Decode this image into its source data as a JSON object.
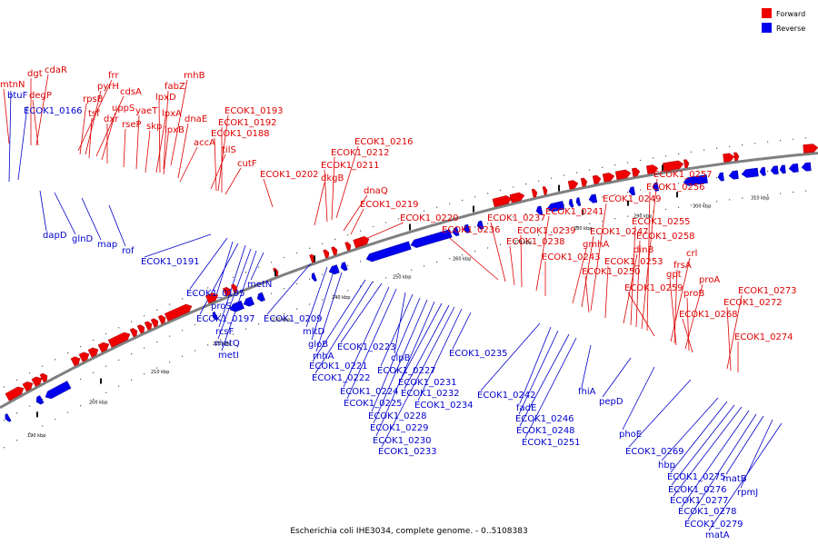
{
  "legend": {
    "forward_label": "Forward",
    "reverse_label": "Reverse",
    "forward_color": "#ee0000",
    "reverse_color": "#0000ee"
  },
  "caption": "Escherichia coli IHE3034, complete genome. - 0..5108383",
  "strand_colors": {
    "forward": "#ee0000",
    "reverse": "#0000ee",
    "backbone": "#808080"
  },
  "kbp_ticks": [
    "190 kbp",
    "200 kbp",
    "210 kbp",
    "220 kbp",
    "230 kbp",
    "240 kbp",
    "250 kbp",
    "260 kbp",
    "270 kbp",
    "280 kbp",
    "290 kbp",
    "300 kbp",
    "310 kbp"
  ],
  "forward_genes": [
    "dgt",
    "cdaR",
    "mtnN",
    "degP",
    "frr",
    "rnhB",
    "pyrH",
    "cdsA",
    "fabZ",
    "rpsB",
    "uppS",
    "lpxD",
    "yaeT",
    "tsf",
    "dxr",
    "lpxA",
    "skp",
    "rseP",
    "lpxB",
    "dnaE",
    "accA",
    "tilS",
    "cutF",
    "ECOK1_0193",
    "ECOK1_0192",
    "ECOK1_0188",
    "ECOK1_0202",
    "ECOK1_0216",
    "ECOK1_0212",
    "ECOK1_0211",
    "dkgB",
    "dnaQ",
    "ECOK1_0219",
    "ECOK1_0220",
    "ECOK1_0237",
    "ECOK1_0236",
    "ECOK1_0241",
    "ECOK1_0239",
    "ECOK1_0238",
    "ECOK1_0243",
    "gmhA",
    "ECOK1_0247",
    "ECOK1_0249",
    "ECOK1_0250",
    "ECOK1_0253",
    "dinB",
    "ECOK1_0255",
    "ECOK1_0258",
    "ECOK1_0257",
    "ECOK1_0256",
    "crl",
    "frsA",
    "gpt",
    "proA",
    "ECOK1_0259",
    "proB",
    "ECOK1_0268",
    "ECOK1_0273",
    "ECOK1_0272",
    "ECOK1_0274"
  ],
  "reverse_genes": [
    "btuF",
    "ECOK1_0166",
    "dapD",
    "glnD",
    "map",
    "rof",
    "ECOK1_0191",
    "ECOK1_0195",
    "proS",
    "ECOK1_0197",
    "rcsF",
    "metQ",
    "metI",
    "metN",
    "ECOK1_0209",
    "mltD",
    "gloB",
    "rnhA",
    "ECOK1_0221",
    "ECOK1_0222",
    "ECOK1_0223",
    "ECOK1_0224",
    "ECOK1_0225",
    "clpB",
    "ECOK1_0227",
    "ECOK1_0228",
    "ECOK1_0229",
    "ECOK1_0230",
    "ECOK1_0231",
    "ECOK1_0232",
    "ECOK1_0233",
    "ECOK1_0234",
    "ECOK1_0235",
    "ECOK1_0242",
    "fadE",
    "ECOK1_0246",
    "ECOK1_0248",
    "ECOK1_0251",
    "fhiA",
    "pepD",
    "phoE",
    "ECOK1_0269",
    "hbp",
    "ECOK1_0275",
    "ECOK1_0276",
    "ECOK1_0277",
    "ECOK1_0278",
    "ECOK1_0279",
    "matB",
    "rpmJ",
    "matA"
  ]
}
